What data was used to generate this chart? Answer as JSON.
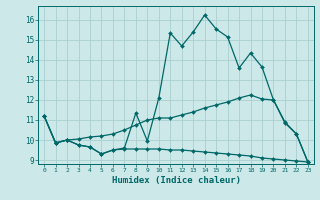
{
  "xlabel": "Humidex (Indice chaleur)",
  "background_color": "#cce8e8",
  "grid_color": "#aacfcf",
  "line_color": "#006868",
  "xlim": [
    -0.5,
    23.5
  ],
  "ylim": [
    8.8,
    16.7
  ],
  "yticks": [
    9,
    10,
    11,
    12,
    13,
    14,
    15,
    16
  ],
  "xticks": [
    0,
    1,
    2,
    3,
    4,
    5,
    6,
    7,
    8,
    9,
    10,
    11,
    12,
    13,
    14,
    15,
    16,
    17,
    18,
    19,
    20,
    21,
    22,
    23
  ],
  "series1_x": [
    0,
    1,
    2,
    3,
    4,
    5,
    6,
    7,
    8,
    9,
    10,
    11,
    12,
    13,
    14,
    15,
    16,
    17,
    18,
    19,
    20,
    21,
    22,
    23
  ],
  "series1_y": [
    11.2,
    9.85,
    10.0,
    9.75,
    9.65,
    9.3,
    9.5,
    9.55,
    9.55,
    9.55,
    9.55,
    9.5,
    9.5,
    9.45,
    9.4,
    9.35,
    9.3,
    9.25,
    9.2,
    9.1,
    9.05,
    9.0,
    8.95,
    8.9
  ],
  "series2_x": [
    0,
    1,
    2,
    3,
    4,
    5,
    6,
    7,
    8,
    9,
    10,
    11,
    12,
    13,
    14,
    15,
    16,
    17,
    18,
    19,
    20,
    21,
    22,
    23
  ],
  "series2_y": [
    11.2,
    9.85,
    10.0,
    10.05,
    10.15,
    10.2,
    10.3,
    10.5,
    10.75,
    11.0,
    11.1,
    11.1,
    11.25,
    11.4,
    11.6,
    11.75,
    11.9,
    12.1,
    12.25,
    12.05,
    12.0,
    10.85,
    10.3,
    8.9
  ],
  "series3_x": [
    0,
    1,
    2,
    3,
    4,
    5,
    6,
    7,
    8,
    9,
    10,
    11,
    12,
    13,
    14,
    15,
    16,
    17,
    18,
    19,
    20,
    21,
    22,
    23
  ],
  "series3_y": [
    11.2,
    9.85,
    10.0,
    9.75,
    9.65,
    9.3,
    9.5,
    9.6,
    11.35,
    9.95,
    12.1,
    15.35,
    14.7,
    15.4,
    16.25,
    15.55,
    15.15,
    13.6,
    14.35,
    13.65,
    12.0,
    10.9,
    10.3,
    8.9
  ]
}
